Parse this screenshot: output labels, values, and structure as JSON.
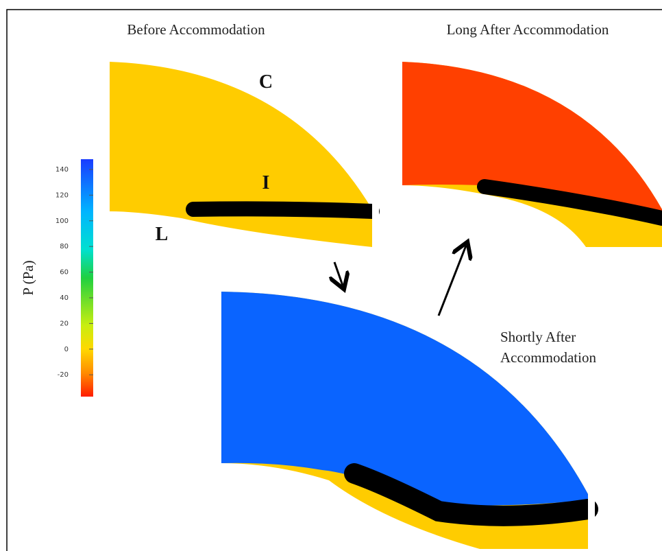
{
  "panels": {
    "before": {
      "title": "Before Accommodation",
      "labels": {
        "cornea": "C",
        "iris": "I",
        "lens": "L"
      }
    },
    "long_after": {
      "title": "Long After Accommodation"
    },
    "shortly_after": {
      "title_lines": [
        "Shortly After",
        "Accommodation"
      ]
    }
  },
  "colorbar": {
    "label": "P (Pa)",
    "lim": [
      -37,
      148
    ],
    "ticks": [
      140,
      120,
      100,
      80,
      60,
      40,
      20,
      0,
      -20
    ]
  }
}
